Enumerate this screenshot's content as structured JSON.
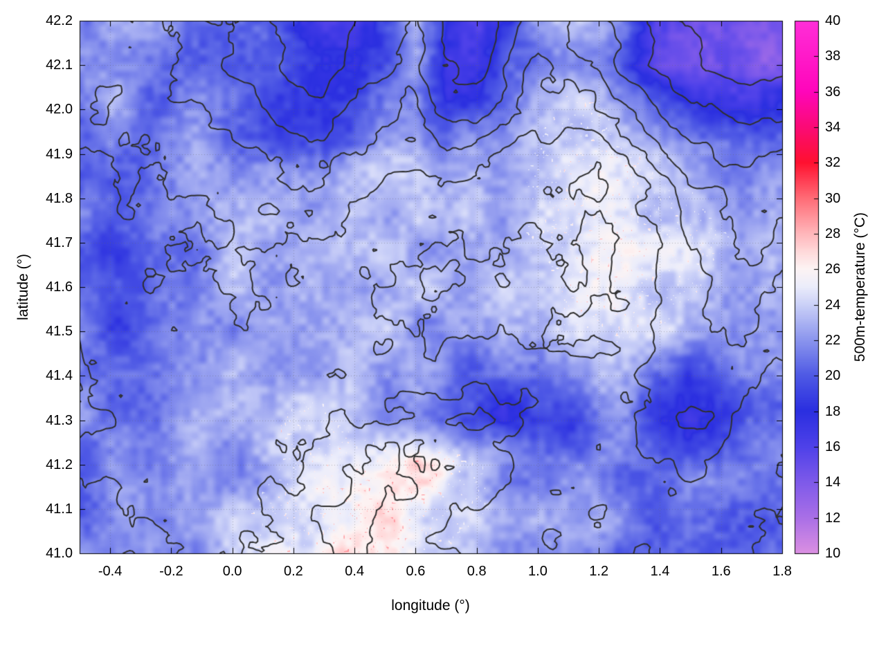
{
  "figure": {
    "background": "#ffffff"
  },
  "chart_data": {
    "type": "heatmap",
    "title": "",
    "xlabel": "longitude (°)",
    "ylabel": "latitude (°)",
    "colorbar_label": "500m-temperature (°C)",
    "xlim": [
      -0.5,
      1.8
    ],
    "ylim": [
      41.0,
      42.2
    ],
    "clim": [
      10,
      40
    ],
    "grid_dotted": true,
    "x_tick_values": [
      -0.4,
      -0.2,
      0.0,
      0.2,
      0.4,
      0.6,
      0.8,
      1.0,
      1.2,
      1.4,
      1.6,
      1.8
    ],
    "x_tick_labels": [
      "-0.4",
      "-0.2",
      "0.0",
      "0.2",
      "0.4",
      "0.6",
      "0.8",
      "1.0",
      "1.2",
      "1.4",
      "1.6",
      "1.8"
    ],
    "y_tick_values": [
      41.0,
      41.1,
      41.2,
      41.3,
      41.4,
      41.5,
      41.6,
      41.7,
      41.8,
      41.9,
      42.0,
      42.1,
      42.2
    ],
    "y_tick_labels": [
      "41.0",
      "41.1",
      "41.2",
      "41.3",
      "41.4",
      "41.5",
      "41.6",
      "41.7",
      "41.8",
      "41.9",
      "42.0",
      "42.1",
      "42.2"
    ],
    "cb_tick_values": [
      10,
      12,
      14,
      16,
      18,
      20,
      22,
      24,
      26,
      28,
      30,
      32,
      34,
      36,
      38,
      40
    ],
    "cb_tick_labels": [
      "10",
      "12",
      "14",
      "16",
      "18",
      "20",
      "22",
      "24",
      "26",
      "28",
      "30",
      "32",
      "34",
      "36",
      "38",
      "40"
    ],
    "palette_stops": [
      [
        10,
        "#da8fe2"
      ],
      [
        12,
        "#a96fe7"
      ],
      [
        14,
        "#7e5aea"
      ],
      [
        16,
        "#4e41e9"
      ],
      [
        18,
        "#2b2fe0"
      ],
      [
        20,
        "#4f5ae5"
      ],
      [
        22,
        "#8c96ee"
      ],
      [
        24,
        "#ccd2f8"
      ],
      [
        25,
        "#ecedfb"
      ],
      [
        26,
        "#fdf4f4"
      ],
      [
        27,
        "#ffd9da"
      ],
      [
        28,
        "#ffb6ba"
      ],
      [
        30,
        "#ff6b76"
      ],
      [
        32,
        "#ff1130"
      ],
      [
        34,
        "#fb0b76"
      ],
      [
        36,
        "#ff06bb"
      ],
      [
        40,
        "#ff2fd8"
      ]
    ],
    "contour_color": "#2f2f2f",
    "contour_levels": [
      300,
      500,
      700,
      900,
      1200,
      1600,
      2000
    ],
    "temperature_grid": {
      "ncols": 24,
      "nrows": 13,
      "lon_range": [
        -0.5,
        1.8
      ],
      "lat_range": [
        42.2,
        41.0
      ],
      "values": [
        [
          22,
          22,
          22,
          22,
          21,
          21,
          20,
          19,
          17,
          17,
          19,
          22,
          18,
          17,
          19,
          22,
          23,
          22,
          20,
          17,
          15,
          14,
          13,
          14
        ],
        [
          22,
          22,
          22,
          21,
          21,
          21,
          20,
          19,
          17,
          17,
          20,
          22,
          17,
          17,
          20,
          22,
          23,
          22,
          19,
          16,
          14,
          14,
          14,
          15
        ],
        [
          21,
          22,
          21,
          21,
          21,
          21,
          20,
          19,
          18,
          19,
          21,
          22,
          19,
          20,
          21,
          23,
          24,
          24,
          22,
          20,
          18,
          17,
          17,
          18
        ],
        [
          21,
          21,
          20,
          21,
          22,
          22,
          21,
          20,
          20,
          22,
          23,
          23,
          21,
          22,
          23,
          24,
          25,
          25,
          24,
          23,
          22,
          21,
          21,
          21
        ],
        [
          21,
          20,
          20,
          21,
          22,
          23,
          22,
          22,
          22,
          23,
          23,
          23,
          22,
          23,
          23,
          24,
          25,
          25.5,
          25,
          24,
          24,
          23,
          22,
          22
        ],
        [
          20,
          19,
          20,
          21,
          22,
          23,
          23,
          23,
          23,
          23,
          23,
          23,
          23,
          23,
          23,
          24,
          24,
          25,
          25,
          25,
          24,
          24,
          23,
          22
        ],
        [
          20,
          19,
          19,
          21,
          22,
          23,
          23,
          23,
          23,
          23,
          23,
          23,
          23,
          23,
          23,
          23,
          24,
          25,
          25,
          24,
          24,
          23,
          22,
          22
        ],
        [
          21,
          20,
          20,
          21,
          22,
          22,
          23,
          23,
          23,
          23,
          23,
          22,
          22,
          22,
          23,
          23,
          24,
          24,
          24,
          24,
          23,
          22,
          22,
          21
        ],
        [
          21,
          21,
          21,
          22,
          22,
          22,
          23,
          23,
          23,
          23,
          22,
          22,
          21,
          20,
          20,
          21,
          22,
          23,
          22,
          20,
          19,
          20,
          21,
          21
        ],
        [
          22,
          21,
          21,
          22,
          22,
          23,
          23,
          24,
          24,
          23,
          22,
          21,
          20,
          19,
          18,
          19,
          19,
          21,
          21,
          19,
          18,
          19,
          21,
          21
        ],
        [
          21,
          21,
          21,
          22,
          22,
          22,
          23,
          24,
          25,
          25,
          25,
          26,
          26,
          24,
          22,
          22,
          22,
          22,
          21,
          21,
          21,
          21,
          21,
          21
        ],
        [
          21,
          21,
          22,
          22,
          22,
          23,
          24,
          25,
          25,
          26,
          26,
          25,
          24,
          24,
          23,
          22,
          22,
          22,
          21,
          21,
          21,
          21,
          21,
          21
        ],
        [
          22,
          22,
          22,
          22,
          22,
          23,
          24,
          25,
          26,
          26,
          27,
          26,
          24,
          23,
          22,
          22,
          22,
          22,
          21,
          21,
          21,
          21,
          21,
          21
        ]
      ]
    },
    "elevation_grid": {
      "ncols": 24,
      "nrows": 13,
      "lon_range": [
        -0.5,
        1.8
      ],
      "lat_range": [
        42.2,
        41.0
      ],
      "values": [
        [
          600,
          650,
          700,
          700,
          800,
          900,
          1100,
          1400,
          1500,
          1200,
          1000,
          900,
          1300,
          1500,
          1000,
          800,
          900,
          1100,
          1400,
          1800,
          2000,
          2200,
          2300,
          2200
        ],
        [
          550,
          600,
          650,
          700,
          800,
          900,
          1000,
          1300,
          1400,
          1100,
          900,
          800,
          1200,
          1400,
          900,
          700,
          800,
          1000,
          1300,
          1700,
          1900,
          2100,
          2200,
          2100
        ],
        [
          500,
          550,
          600,
          650,
          700,
          800,
          900,
          1100,
          1100,
          900,
          800,
          700,
          1000,
          1000,
          700,
          600,
          600,
          700,
          900,
          1200,
          1500,
          1700,
          1800,
          1700
        ],
        [
          450,
          500,
          500,
          550,
          600,
          650,
          700,
          800,
          800,
          700,
          600,
          500,
          600,
          600,
          500,
          400,
          400,
          400,
          600,
          800,
          1000,
          1200,
          1300,
          1200
        ],
        [
          400,
          450,
          450,
          500,
          500,
          550,
          550,
          600,
          600,
          500,
          450,
          400,
          400,
          400,
          350,
          300,
          300,
          300,
          400,
          600,
          800,
          900,
          1000,
          900
        ],
        [
          400,
          420,
          430,
          450,
          480,
          500,
          500,
          500,
          450,
          400,
          350,
          300,
          300,
          280,
          280,
          250,
          250,
          250,
          350,
          500,
          700,
          800,
          900,
          800
        ],
        [
          380,
          400,
          420,
          440,
          450,
          470,
          460,
          440,
          400,
          350,
          300,
          280,
          260,
          250,
          250,
          230,
          250,
          280,
          350,
          500,
          650,
          750,
          800,
          700
        ],
        [
          350,
          380,
          400,
          420,
          430,
          440,
          430,
          400,
          380,
          330,
          300,
          280,
          260,
          260,
          270,
          260,
          280,
          320,
          400,
          550,
          650,
          700,
          700,
          600
        ],
        [
          320,
          350,
          380,
          400,
          400,
          410,
          400,
          380,
          360,
          340,
          320,
          350,
          400,
          450,
          400,
          350,
          320,
          350,
          450,
          600,
          700,
          650,
          550,
          450
        ],
        [
          300,
          320,
          350,
          380,
          380,
          380,
          380,
          400,
          450,
          500,
          550,
          600,
          650,
          700,
          600,
          500,
          420,
          400,
          500,
          650,
          700,
          600,
          450,
          350
        ],
        [
          280,
          300,
          320,
          350,
          360,
          380,
          420,
          500,
          600,
          700,
          750,
          700,
          650,
          600,
          500,
          420,
          380,
          350,
          400,
          500,
          550,
          450,
          350,
          300
        ],
        [
          250,
          280,
          300,
          320,
          350,
          400,
          500,
          600,
          700,
          750,
          700,
          650,
          550,
          500,
          420,
          380,
          340,
          320,
          330,
          380,
          420,
          380,
          320,
          280
        ],
        [
          230,
          250,
          280,
          300,
          330,
          380,
          480,
          580,
          650,
          700,
          650,
          600,
          500,
          450,
          400,
          350,
          320,
          300,
          300,
          330,
          360,
          330,
          300,
          260
        ]
      ]
    }
  }
}
